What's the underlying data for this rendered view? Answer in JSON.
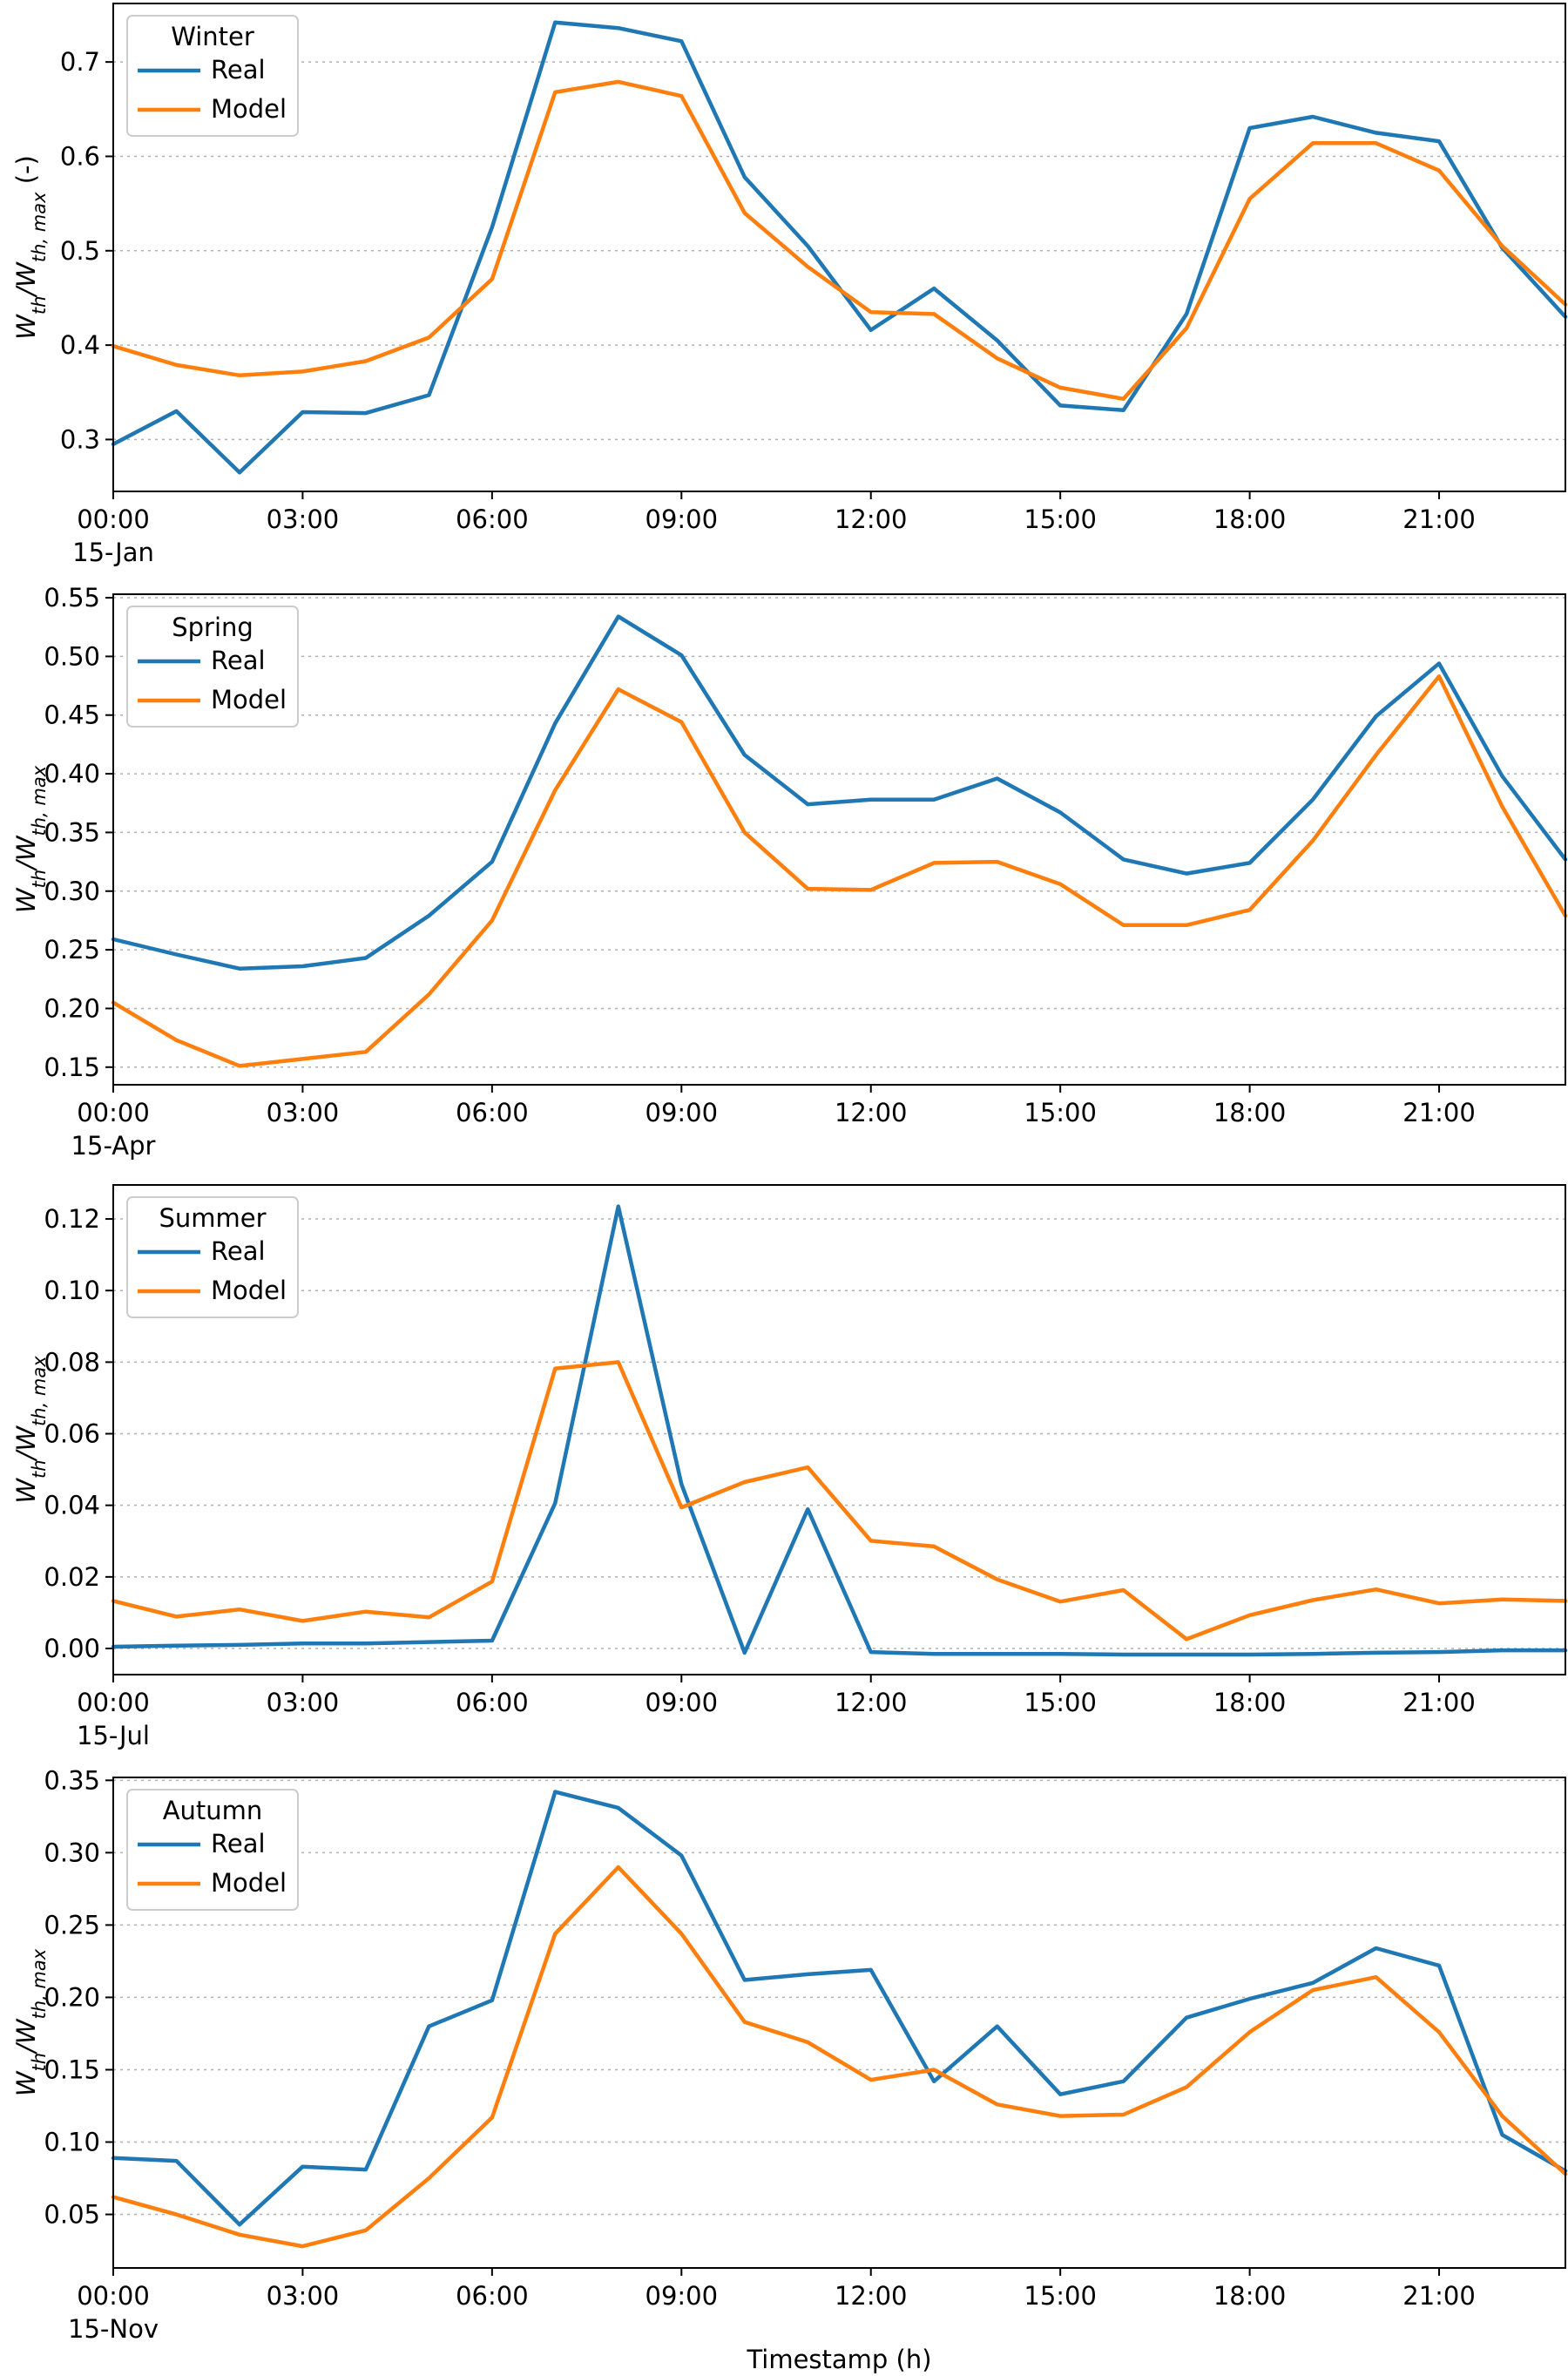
{
  "colors": {
    "real": "#1f77b4",
    "model": "#ff7f0e"
  },
  "chart_data": [
    {
      "type": "line",
      "legend_title": "Winter",
      "legend_position": "top-left",
      "grid": "horizontal",
      "date_label": "15-Jan",
      "x_ticks": [
        "00:00",
        "03:00",
        "06:00",
        "09:00",
        "12:00",
        "15:00",
        "18:00",
        "21:00"
      ],
      "x": [
        0,
        1,
        2,
        3,
        4,
        5,
        6,
        7,
        8,
        9,
        10,
        11,
        12,
        13,
        14,
        15,
        16,
        17,
        18,
        19,
        20,
        21,
        22,
        23
      ],
      "xlim": [
        0,
        23
      ],
      "ylabel": "W_th/W_th,max (-)",
      "ylabel_parts": {
        "main": "W",
        "sub1": "th",
        "slash": "/W",
        "sub2": "th, max",
        "suffix": " (-)"
      },
      "ylim": [
        0.245,
        0.762
      ],
      "y_ticks": [
        "0.3",
        "0.4",
        "0.5",
        "0.6",
        "0.7"
      ],
      "series": [
        {
          "name": "Real",
          "values": [
            0.295,
            0.33,
            0.265,
            0.329,
            0.328,
            0.347,
            0.525,
            0.742,
            0.736,
            0.722,
            0.578,
            0.505,
            0.416,
            0.46,
            0.405,
            0.336,
            0.331,
            0.433,
            0.63,
            0.642,
            0.625,
            0.616,
            0.503,
            0.43
          ]
        },
        {
          "name": "Model",
          "values": [
            0.399,
            0.379,
            0.368,
            0.372,
            0.383,
            0.408,
            0.47,
            0.668,
            0.679,
            0.664,
            0.54,
            0.483,
            0.435,
            0.433,
            0.386,
            0.355,
            0.343,
            0.418,
            0.555,
            0.614,
            0.614,
            0.585,
            0.505,
            0.443
          ]
        }
      ]
    },
    {
      "type": "line",
      "legend_title": "Spring",
      "legend_position": "top-left",
      "grid": "horizontal",
      "date_label": "15-Apr",
      "x_ticks": [
        "00:00",
        "03:00",
        "06:00",
        "09:00",
        "12:00",
        "15:00",
        "18:00",
        "21:00"
      ],
      "x": [
        0,
        1,
        2,
        3,
        4,
        5,
        6,
        7,
        8,
        9,
        10,
        11,
        12,
        13,
        14,
        15,
        16,
        17,
        18,
        19,
        20,
        21,
        22,
        23
      ],
      "xlim": [
        0,
        23
      ],
      "ylabel": "W_th/W_th,max",
      "ylabel_parts": {
        "main": "W",
        "sub1": "th",
        "slash": "/W",
        "sub2": "th, max",
        "suffix": ""
      },
      "ylim": [
        0.135,
        0.553
      ],
      "y_ticks": [
        "0.15",
        "0.20",
        "0.25",
        "0.30",
        "0.35",
        "0.40",
        "0.45",
        "0.50",
        "0.55"
      ],
      "series": [
        {
          "name": "Real",
          "values": [
            0.259,
            0.246,
            0.234,
            0.236,
            0.243,
            0.279,
            0.325,
            0.443,
            0.534,
            0.501,
            0.416,
            0.374,
            0.378,
            0.378,
            0.396,
            0.367,
            0.327,
            0.315,
            0.324,
            0.378,
            0.449,
            0.494,
            0.398,
            0.327
          ]
        },
        {
          "name": "Model",
          "values": [
            0.205,
            0.173,
            0.151,
            0.157,
            0.163,
            0.212,
            0.275,
            0.386,
            0.472,
            0.444,
            0.35,
            0.302,
            0.301,
            0.324,
            0.325,
            0.306,
            0.271,
            0.271,
            0.284,
            0.343,
            0.416,
            0.483,
            0.372,
            0.279
          ]
        }
      ]
    },
    {
      "type": "line",
      "legend_title": "Summer",
      "legend_position": "top-left",
      "grid": "horizontal",
      "date_label": "15-Jul",
      "x_ticks": [
        "00:00",
        "03:00",
        "06:00",
        "09:00",
        "12:00",
        "15:00",
        "18:00",
        "21:00"
      ],
      "x": [
        0,
        1,
        2,
        3,
        4,
        5,
        6,
        7,
        8,
        9,
        10,
        11,
        12,
        13,
        14,
        15,
        16,
        17,
        18,
        19,
        20,
        21,
        22,
        23
      ],
      "xlim": [
        0,
        23
      ],
      "ylabel": "W_th/W_th,max",
      "ylabel_parts": {
        "main": "W",
        "sub1": "th",
        "slash": "/W",
        "sub2": "th, max",
        "suffix": ""
      },
      "ylim": [
        -0.0073,
        0.1295
      ],
      "y_ticks": [
        "0.00",
        "0.02",
        "0.04",
        "0.06",
        "0.08",
        "0.10",
        "0.12"
      ],
      "series": [
        {
          "name": "Real",
          "values": [
            0.0005,
            0.0008,
            0.001,
            0.0014,
            0.0014,
            0.0018,
            0.0022,
            0.0406,
            0.1235,
            0.0459,
            -0.0012,
            0.0389,
            -0.001,
            -0.0015,
            -0.0015,
            -0.0015,
            -0.0017,
            -0.0017,
            -0.0017,
            -0.0015,
            -0.0012,
            -0.001,
            -0.0005,
            -0.0005
          ]
        },
        {
          "name": "Model",
          "values": [
            0.0133,
            0.0089,
            0.0109,
            0.0077,
            0.0103,
            0.0087,
            0.0187,
            0.0782,
            0.08,
            0.0394,
            0.0465,
            0.0506,
            0.0301,
            0.0285,
            0.0193,
            0.0131,
            0.0163,
            0.0026,
            0.0093,
            0.0135,
            0.0165,
            0.0126,
            0.0137,
            0.0133
          ]
        }
      ]
    },
    {
      "type": "line",
      "legend_title": "Autumn",
      "legend_position": "top-left",
      "grid": "horizontal",
      "date_label": "15-Nov",
      "x_ticks": [
        "00:00",
        "03:00",
        "06:00",
        "09:00",
        "12:00",
        "15:00",
        "18:00",
        "21:00"
      ],
      "x": [
        0,
        1,
        2,
        3,
        4,
        5,
        6,
        7,
        8,
        9,
        10,
        11,
        12,
        13,
        14,
        15,
        16,
        17,
        18,
        19,
        20,
        21,
        22,
        23
      ],
      "xlim": [
        0,
        23
      ],
      "xlabel": "Timestamp (h)",
      "ylabel": "W_th/W_th,max",
      "ylabel_parts": {
        "main": "W",
        "sub1": "th",
        "slash": "/W",
        "sub2": "th, max",
        "suffix": ""
      },
      "ylim": [
        0.013,
        0.352
      ],
      "y_ticks": [
        "0.05",
        "0.10",
        "0.15",
        "0.20",
        "0.25",
        "0.30",
        "0.35"
      ],
      "series": [
        {
          "name": "Real",
          "values": [
            0.089,
            0.087,
            0.043,
            0.083,
            0.081,
            0.18,
            0.198,
            0.342,
            0.331,
            0.298,
            0.212,
            0.216,
            0.219,
            0.142,
            0.18,
            0.133,
            0.142,
            0.186,
            0.199,
            0.21,
            0.234,
            0.222,
            0.105,
            0.08
          ]
        },
        {
          "name": "Model",
          "values": [
            0.062,
            0.05,
            0.036,
            0.028,
            0.039,
            0.075,
            0.117,
            0.244,
            0.29,
            0.244,
            0.183,
            0.169,
            0.143,
            0.15,
            0.126,
            0.118,
            0.119,
            0.138,
            0.176,
            0.205,
            0.214,
            0.176,
            0.118,
            0.078
          ]
        }
      ]
    }
  ]
}
